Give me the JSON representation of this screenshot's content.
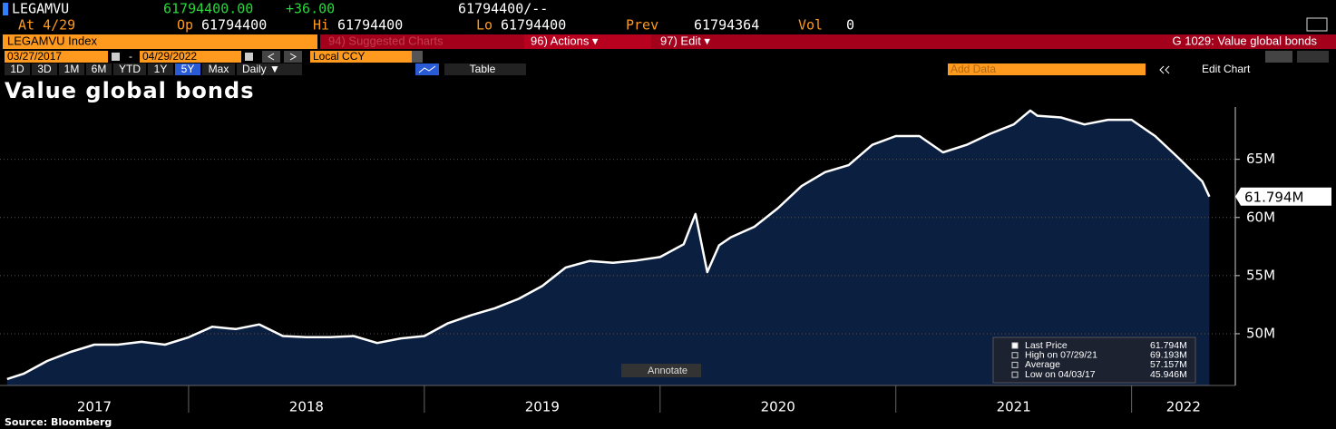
{
  "header": {
    "ticker": "LEGAMVU",
    "last": "61794400.00",
    "change": "+36.00",
    "bid_ask": "61794400/--",
    "as_of": "At 4/29",
    "open_label": "Op",
    "open": "61794400",
    "high_label": "Hi",
    "high": "61794400",
    "low_label": "Lo",
    "low": "61794400",
    "prev_label": "Prev",
    "prev": "61794364",
    "vol_label": "Vol",
    "vol": "0"
  },
  "toolbar": {
    "security": "LEGAMVU Index",
    "suggested": "94) Suggested Charts",
    "actions": "96) Actions ▾",
    "edit": "97) Edit ▾",
    "page_title": "G 1029: Value global bonds"
  },
  "range": {
    "start": "03/27/2017",
    "separator": "-",
    "end": "04/29/2022",
    "currency": "Local CCY",
    "periods": [
      "1D",
      "3D",
      "1M",
      "6M",
      "YTD",
      "1Y",
      "5Y",
      "Max"
    ],
    "selected": "5Y",
    "frequency": "Daily ▼",
    "table": "Table",
    "add_data": "Add Data",
    "edit_chart": "Edit Chart"
  },
  "annotate": "Annotate",
  "source": "Source: Bloomberg",
  "chart_data": {
    "type": "area",
    "title": "Value global bonds",
    "color": "#ffffff",
    "fill": "#0b1f40",
    "x": [
      2017.23,
      2017.3,
      2017.4,
      2017.5,
      2017.6,
      2017.7,
      2017.8,
      2017.9,
      2018.0,
      2018.1,
      2018.2,
      2018.3,
      2018.4,
      2018.5,
      2018.6,
      2018.7,
      2018.8,
      2018.9,
      2019.0,
      2019.1,
      2019.2,
      2019.3,
      2019.4,
      2019.5,
      2019.6,
      2019.7,
      2019.8,
      2019.9,
      2020.0,
      2020.1,
      2020.15,
      2020.2,
      2020.25,
      2020.3,
      2020.4,
      2020.5,
      2020.6,
      2020.7,
      2020.8,
      2020.9,
      2021.0,
      2021.1,
      2021.2,
      2021.3,
      2021.4,
      2021.5,
      2021.57,
      2021.6,
      2021.7,
      2021.8,
      2021.9,
      2022.0,
      2022.1,
      2022.2,
      2022.3,
      2022.33
    ],
    "values": [
      46100000,
      46560000,
      47660000,
      48440000,
      49060000,
      49060000,
      49300000,
      49060000,
      49690000,
      50600000,
      50400000,
      50800000,
      49800000,
      49700000,
      49700000,
      49800000,
      49200000,
      49600000,
      49800000,
      50900000,
      51600000,
      52200000,
      53000000,
      54100000,
      55700000,
      56250000,
      56100000,
      56300000,
      56600000,
      57700000,
      60300000,
      55300000,
      57600000,
      58300000,
      59200000,
      60800000,
      62700000,
      63900000,
      64500000,
      66250000,
      67000000,
      67000000,
      65600000,
      66250000,
      67200000,
      68000000,
      69193000,
      68750000,
      68600000,
      68000000,
      68400000,
      68400000,
      67000000,
      65100000,
      63100000,
      61794400
    ],
    "last_label": "61.794M",
    "xlim": [
      2017.2,
      2022.44
    ],
    "xticks": [
      {
        "value": 2017,
        "label": "2017"
      },
      {
        "value": 2018,
        "label": "2018"
      },
      {
        "value": 2019,
        "label": "2019"
      },
      {
        "value": 2020,
        "label": "2020"
      },
      {
        "value": 2021,
        "label": "2021"
      },
      {
        "value": 2022,
        "label": "2022"
      }
    ],
    "ylim": [
      45550000,
      69500000
    ],
    "yticks": [
      {
        "value": 50000000,
        "label": "50M"
      },
      {
        "value": 55000000,
        "label": "55M"
      },
      {
        "value": 60000000,
        "label": "60M"
      },
      {
        "value": 65000000,
        "label": "65M"
      }
    ],
    "grid": true,
    "stats": [
      {
        "label": "Last Price",
        "value": "61.794M"
      },
      {
        "label": "High on 07/29/21",
        "value": "69.193M"
      },
      {
        "label": "Average",
        "value": "57.157M"
      },
      {
        "label": "Low on 04/03/17",
        "value": "45.946M"
      }
    ]
  }
}
